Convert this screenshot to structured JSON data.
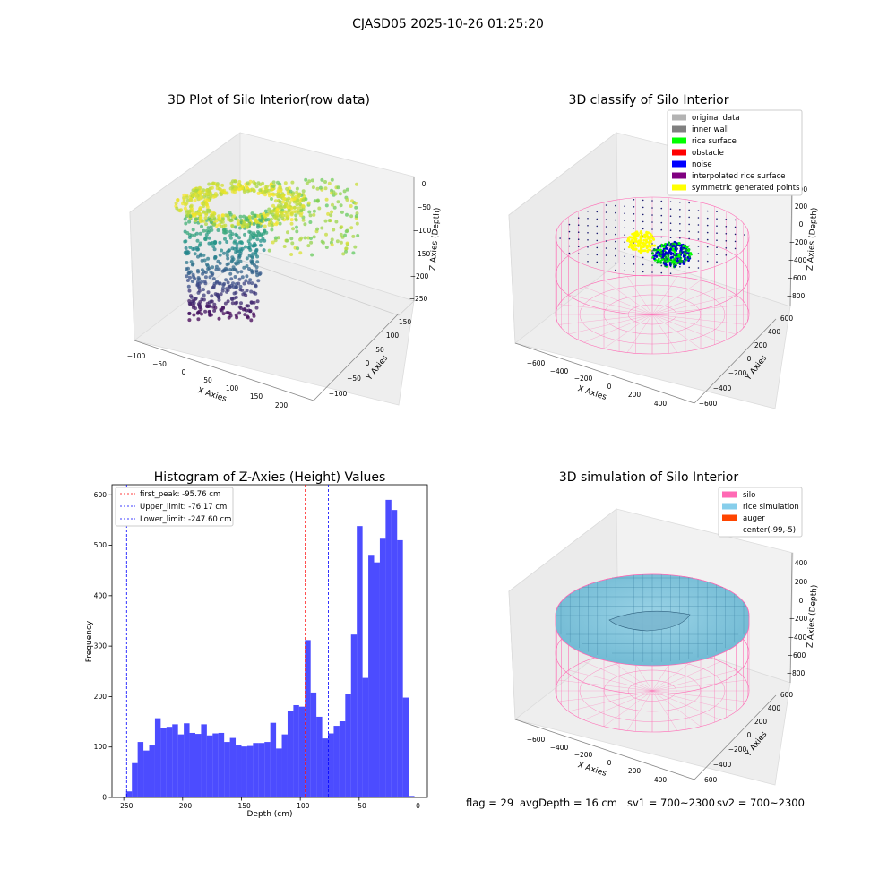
{
  "suptitle": "CJASD05 2025-10-26 01:25:20",
  "panels": {
    "raw": {
      "title": "3D Plot of Silo Interior(row data)",
      "xlabel": "X Axies",
      "ylabel": "Y Axies",
      "zlabel": "Z Axies (Depth)",
      "xticks": [
        "−100",
        "−50",
        "0",
        "50",
        "100",
        "150",
        "200"
      ],
      "yticks": [
        "−100",
        "−50",
        "0",
        "50",
        "100",
        "150"
      ],
      "zticks": [
        "0",
        "−50",
        "−100",
        "−150",
        "−200",
        "−250"
      ]
    },
    "classify": {
      "title": "3D classify of Silo Interior",
      "xlabel": "X Axies",
      "ylabel": "Y Axies",
      "zlabel": "Z Axies (Depth)",
      "xticks": [
        "−600",
        "−400",
        "−200",
        "0",
        "200",
        "400"
      ],
      "yticks": [
        "−600",
        "−400",
        "−200",
        "0",
        "200",
        "400",
        "600"
      ],
      "zticks": [
        "400",
        "200",
        "0",
        "−200",
        "−400",
        "−600",
        "−800"
      ],
      "legend": [
        {
          "label": "original data",
          "color": "#b3b3b3"
        },
        {
          "label": "inner wall",
          "color": "#808080"
        },
        {
          "label": "rice surface",
          "color": "#00ff00"
        },
        {
          "label": "obstacle",
          "color": "#ff0000"
        },
        {
          "label": "noise",
          "color": "#0000ff"
        },
        {
          "label": "interpolated rice surface",
          "color": "#800080"
        },
        {
          "label": "symmetric generated points",
          "color": "#ffff00"
        }
      ]
    },
    "simulation": {
      "title": "3D simulation of Silo Interior",
      "xlabel": "X Axies",
      "ylabel": "Y Axies",
      "zlabel": "Z Axies (Depth)",
      "xticks": [
        "−600",
        "−400",
        "−200",
        "0",
        "200",
        "400"
      ],
      "yticks": [
        "−600",
        "−400",
        "−200",
        "0",
        "200",
        "400",
        "600"
      ],
      "zticks": [
        "400",
        "200",
        "0",
        "−200",
        "−400",
        "−600",
        "−800"
      ],
      "legend": [
        {
          "label": "silo",
          "color": "#ff69b4"
        },
        {
          "label": "rice simulation",
          "color": "#87ceeb"
        },
        {
          "label": "auger",
          "color": "#ff4500"
        },
        {
          "label": "center(-99,-5)",
          "color": ""
        }
      ]
    }
  },
  "chart_data": [
    {
      "type": "bar",
      "title": "Histogram of Z-Axies (Height) Values",
      "xlabel": "Depth (cm)",
      "ylabel": "Frequency",
      "xlim": [
        -260,
        8
      ],
      "ylim": [
        0,
        620
      ],
      "xticks": [
        -250,
        -200,
        -150,
        -100,
        -50,
        0
      ],
      "xtick_labels": [
        "−250",
        "−200",
        "−150",
        "−100",
        "−50",
        "0"
      ],
      "yticks": [
        0,
        100,
        200,
        300,
        400,
        500,
        600
      ],
      "bar_color": "#0000ff",
      "bin_start": -248,
      "bin_width": 4.9,
      "values": [
        12,
        68,
        110,
        93,
        103,
        157,
        137,
        140,
        145,
        125,
        147,
        128,
        126,
        145,
        123,
        127,
        128,
        110,
        118,
        103,
        101,
        102,
        108,
        108,
        110,
        148,
        97,
        125,
        172,
        183,
        180,
        312,
        208,
        160,
        117,
        127,
        142,
        151,
        205,
        323,
        538,
        237,
        481,
        466,
        513,
        590,
        570,
        510,
        198,
        3
      ],
      "vlines": [
        {
          "label": "first_peak: -95.76 cm",
          "x": -95.76,
          "color": "#ff0000"
        },
        {
          "label": "Upper_limit: -76.17 cm",
          "x": -76.17,
          "color": "#0000ff"
        },
        {
          "label": "Lower_limit: -247.60 cm",
          "x": -247.6,
          "color": "#0000ff"
        }
      ],
      "grid": false,
      "legend_position": "upper-left"
    }
  ],
  "footer": {
    "flag": "flag = 29",
    "avgdepth": "avgDepth = 16 cm",
    "sv1": "sv1 = 700~2300",
    "sv2": "sv2 = 700~2300"
  }
}
